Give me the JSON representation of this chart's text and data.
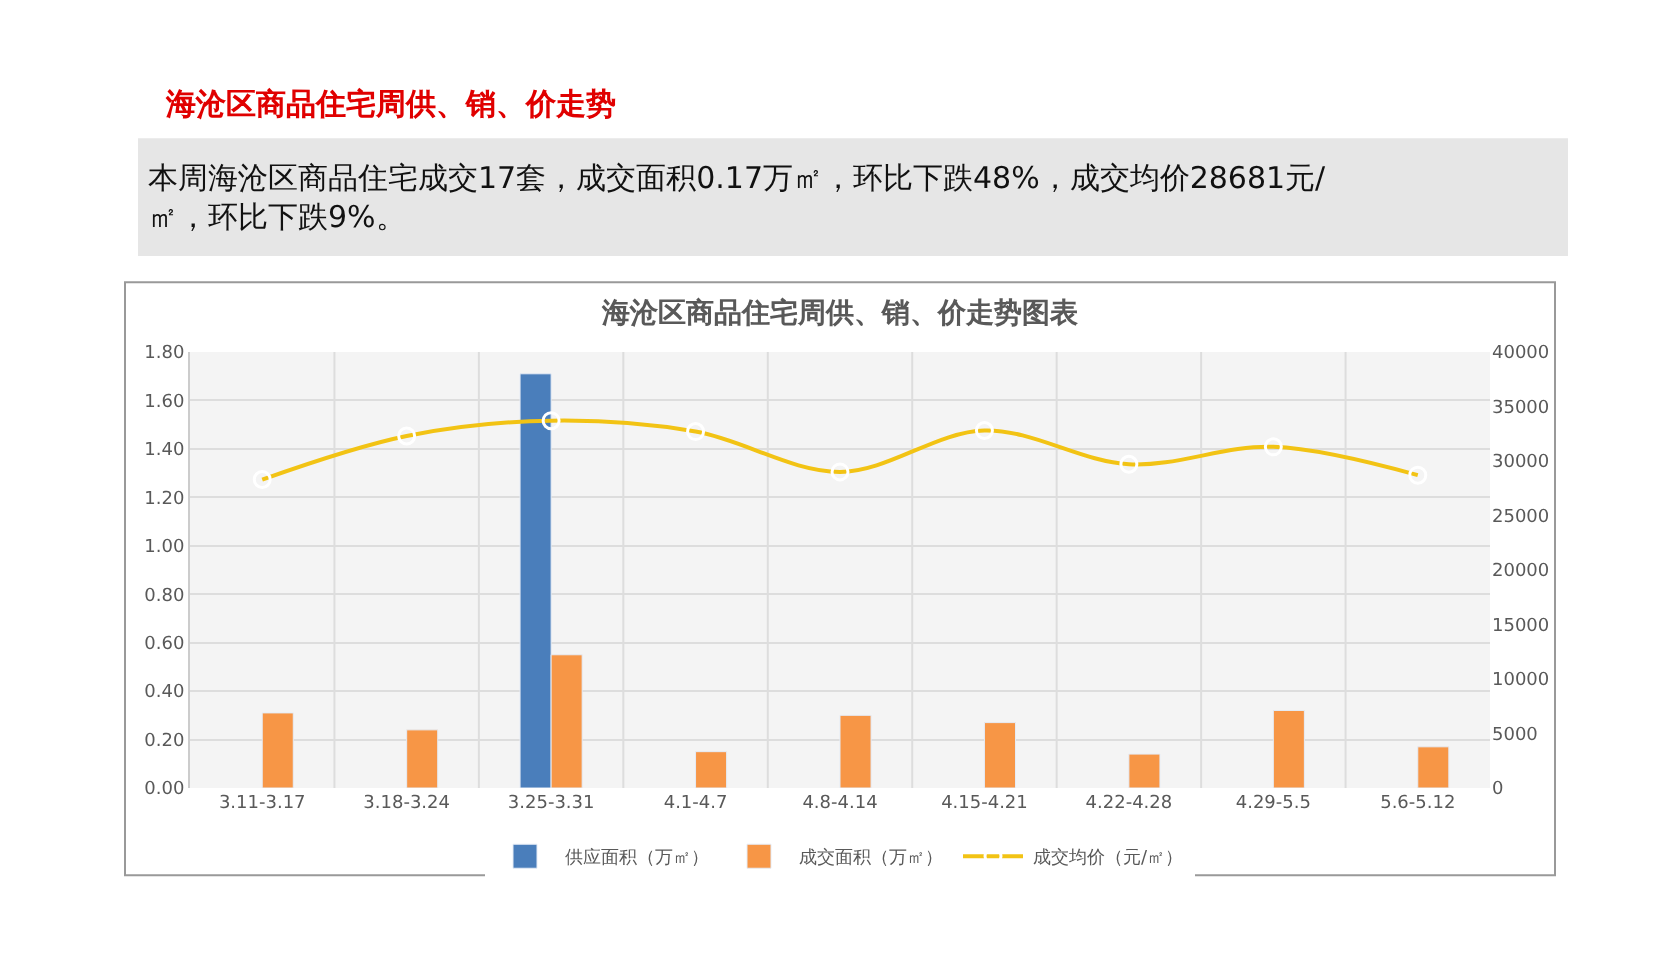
{
  "chart_data": {
    "type": "bar",
    "title": "海沧区商品住宅周供、销、价走势",
    "subtitle": "本周海沧区商品住宅成交17套，成交面积0.17万㎡，环比下跌48%，成交均价28681元/㎡，环比下跌9%。",
    "annotations": [
      "海沧区商品住宅周供、销、价走势图表"
    ],
    "categories": [
      "3.11-3.17",
      "3.18-3.24",
      "3.25-3.31",
      "4.1-4.7",
      "4.8-4.14",
      "4.15-4.21",
      "4.22-4.28",
      "4.29-5.5",
      "5.6-5.12"
    ],
    "series": [
      {
        "name": "供应面积（万㎡）",
        "color": "#4a7ebb",
        "values": [
          null,
          null,
          1.71,
          null,
          null,
          null,
          null,
          null,
          null
        ]
      },
      {
        "name": "成交面积（万㎡）",
        "color": "#f79646",
        "values": [
          0.31,
          0.24,
          0.55,
          0.15,
          0.3,
          0.27,
          0.14,
          0.32,
          0.17
        ]
      },
      {
        "name": "成交均价（元/㎡）",
        "color": "#f2c314",
        "type": "line",
        "axis": "y2",
        "marker": "circle",
        "values": [
          28300,
          32300,
          33700,
          32700,
          29000,
          32800,
          29700,
          31300,
          28700
        ]
      }
    ],
    "ylim": [
      0,
      1.8
    ],
    "yticks": [
      {
        "value": 0,
        "label": "0.00"
      },
      {
        "value": 0.2,
        "label": "0.20"
      },
      {
        "value": 0.4,
        "label": "0.40"
      },
      {
        "value": 0.6,
        "label": "0.60"
      },
      {
        "value": 0.8,
        "label": "0.80"
      },
      {
        "value": 1.0,
        "label": "1.00"
      },
      {
        "value": 1.2,
        "label": "1.20"
      },
      {
        "value": 1.4,
        "label": "1.40"
      },
      {
        "value": 1.6,
        "label": "1.60"
      },
      {
        "value": 1.8,
        "label": "1.80"
      }
    ],
    "y2lim": [
      0,
      40000
    ],
    "y2ticks": [
      0,
      5000,
      10000,
      15000,
      20000,
      25000,
      30000,
      35000,
      40000
    ],
    "grid": true,
    "legend": "bottom"
  }
}
